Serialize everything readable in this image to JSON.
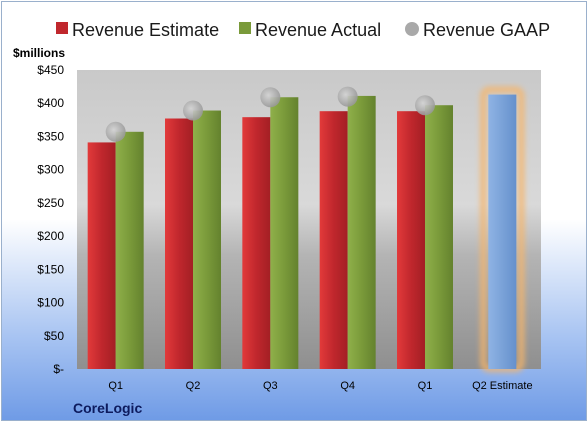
{
  "chart_data": {
    "type": "bar",
    "unit_label": "$millions",
    "categories": [
      "Q1",
      "Q2",
      "Q3",
      "Q4",
      "Q1",
      "Q2 Estimate"
    ],
    "y_ticks": [
      "$-",
      "$50",
      "$100",
      "$150",
      "$200",
      "$250",
      "$300",
      "$350",
      "$400",
      "$450"
    ],
    "ylim": [
      0,
      450
    ],
    "series": [
      {
        "name": "Revenue Estimate",
        "color": "#c0272d",
        "values": [
          341,
          377,
          379,
          388,
          388,
          null
        ]
      },
      {
        "name": "Revenue Actual",
        "color": "#7a9a3a",
        "values": [
          357,
          389,
          409,
          411,
          397,
          null
        ]
      },
      {
        "name": "Revenue GAAP",
        "color": "#a9a9a9",
        "marker": "circle",
        "values": [
          357,
          389,
          409,
          410,
          397,
          null
        ]
      }
    ],
    "forecast": {
      "category": "Q2 Estimate",
      "value": 413,
      "color": "#7aa2d8",
      "glow": "#f6b56a"
    },
    "legend_position": "top",
    "grid": false
  },
  "branding": {
    "company": "CoreLogic"
  }
}
